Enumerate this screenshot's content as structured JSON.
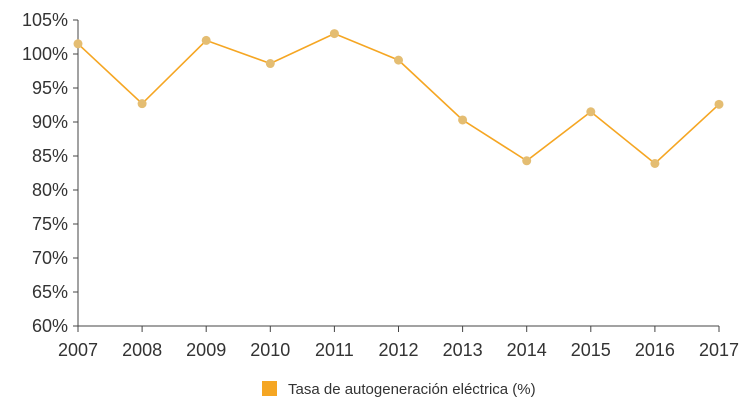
{
  "chart_data": {
    "type": "line",
    "x": [
      "2007",
      "2008",
      "2009",
      "2010",
      "2011",
      "2012",
      "2013",
      "2014",
      "2015",
      "2016",
      "2017"
    ],
    "series": [
      {
        "name": "Tasa de autogeneración eléctrica (%)",
        "values": [
          101.5,
          92.7,
          102.0,
          98.6,
          103.0,
          99.1,
          90.3,
          84.3,
          91.5,
          83.9,
          92.6
        ]
      }
    ],
    "y_ticks": [
      "60%",
      "65%",
      "70%",
      "75%",
      "80%",
      "85%",
      "90%",
      "95%",
      "100%",
      "105%"
    ],
    "ylim": [
      60,
      105
    ],
    "title": "",
    "xlabel": "",
    "ylabel": "",
    "grid": false,
    "legend_position": "bottom-center",
    "colors": {
      "line": "#F5A623",
      "marker": "#E4BD72",
      "axis": "#444444"
    }
  }
}
